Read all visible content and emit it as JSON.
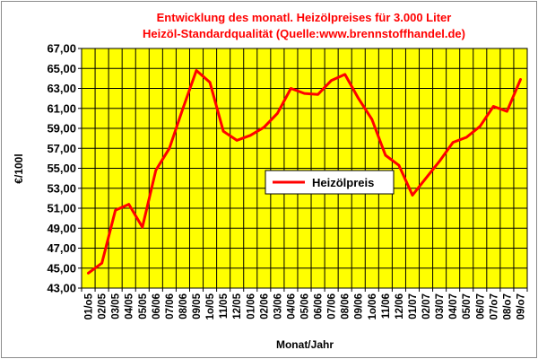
{
  "chart_data": {
    "type": "line",
    "title": [
      "Entwicklung des monatl. Heizölpreises für 3.000 Liter",
      "Heizöl-Standardqualität (Quelle:www.brennstoffhandel.de)"
    ],
    "xlabel": "Monat/Jahr",
    "ylabel": "€/100l",
    "ylim": [
      43,
      67
    ],
    "yticks": [
      "43,00",
      "45,00",
      "47,00",
      "49,00",
      "51,00",
      "53,00",
      "55,00",
      "57,00",
      "59,00",
      "61,00",
      "63,00",
      "65,00",
      "67,00"
    ],
    "categories": [
      "01/o5",
      "02/05",
      "03/05",
      "04/05",
      "05/05",
      "06/06",
      "07/06",
      "08/06",
      "09/05",
      "1o/05",
      "11/05",
      "12/05",
      "01/06",
      "02/06",
      "03/06",
      "04/06",
      "05/06",
      "06/06",
      "07/06",
      "08/06",
      "09/06",
      "1o/06",
      "11/06",
      "12/06",
      "01/07",
      "02/07",
      "03/07",
      "04/07",
      "05/07",
      "06/07",
      "07/o7",
      "08/o7",
      "09/o7"
    ],
    "grid": true,
    "legend_position": "center-right",
    "series": [
      {
        "name": "Heizölpreis",
        "color": "#ff0000",
        "values": [
          44.5,
          45.5,
          50.8,
          51.4,
          49.1,
          54.8,
          57.0,
          61.0,
          64.8,
          63.6,
          58.7,
          57.8,
          58.3,
          59.1,
          60.5,
          63.0,
          62.5,
          62.4,
          63.8,
          64.4,
          62.0,
          59.9,
          56.3,
          55.3,
          52.3,
          54.0,
          55.7,
          57.6,
          58.1,
          59.2,
          61.2,
          60.7,
          63.9
        ]
      }
    ],
    "colors": {
      "plot_background": "#ffff00",
      "grid": "#000000"
    }
  }
}
